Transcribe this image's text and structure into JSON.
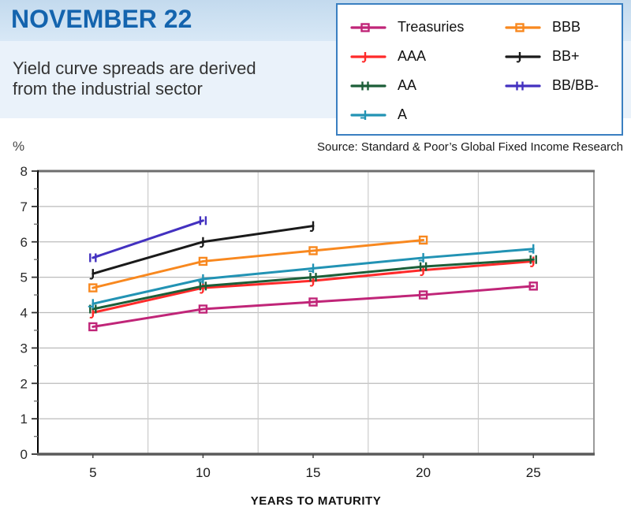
{
  "header": {
    "title": "NOVEMBER 22",
    "subtitle_line1": "Yield curve spreads are derived",
    "subtitle_line2": "from the industrial sector"
  },
  "source": "Source: Standard & Poor’s Global Fixed Income Research",
  "colors": {
    "title_blue": "#1464ae",
    "legend_border": "#3a7fc1",
    "band_top": "#c3daee",
    "band_bottom": "#d8e8f6",
    "subtitle_bg": "#eaf2fa",
    "gridline": "#bbbbbb",
    "axis": "#000000"
  },
  "chart_data": {
    "type": "line",
    "title": "",
    "ylabel": "%",
    "xlabel": "YEARS TO MATURITY",
    "x": [
      5,
      10,
      15,
      20,
      25
    ],
    "xlim": [
      2.5,
      27.75
    ],
    "ylim": [
      0,
      8
    ],
    "y_ticks": [
      0,
      1,
      2,
      3,
      4,
      5,
      6,
      7,
      8
    ],
    "y_minor_step": 0.5,
    "x_gridlines": [
      7.5,
      12.5,
      17.5,
      22.5
    ],
    "grid": true,
    "legend_position": "top-right",
    "legend_columns": [
      4,
      3
    ],
    "series": [
      {
        "name": "Treasuries",
        "color": "#c02578",
        "marker": "square",
        "values": [
          3.6,
          4.1,
          4.3,
          4.5,
          4.75
        ]
      },
      {
        "name": "AAA",
        "color": "#ff2a2a",
        "marker": "dagger",
        "values": [
          4.0,
          4.7,
          4.9,
          5.2,
          5.45
        ]
      },
      {
        "name": "AA",
        "color": "#1c5e38",
        "marker": "doubleplus",
        "values": [
          4.1,
          4.75,
          5.0,
          5.3,
          5.5
        ]
      },
      {
        "name": "A",
        "color": "#2293b4",
        "marker": "tick",
        "values": [
          4.25,
          4.95,
          5.25,
          5.55,
          5.8
        ]
      },
      {
        "name": "BBB",
        "color": "#f8881f",
        "marker": "square",
        "values": [
          4.7,
          5.45,
          5.75,
          6.05,
          null
        ]
      },
      {
        "name": "BB+",
        "color": "#1a1a1a",
        "marker": "dagger",
        "values": [
          5.1,
          6.0,
          6.45,
          null,
          null
        ]
      },
      {
        "name": "BB/BB-",
        "color": "#4331c0",
        "marker": "doubleplus",
        "values": [
          5.55,
          6.6,
          null,
          null,
          null
        ]
      }
    ]
  }
}
